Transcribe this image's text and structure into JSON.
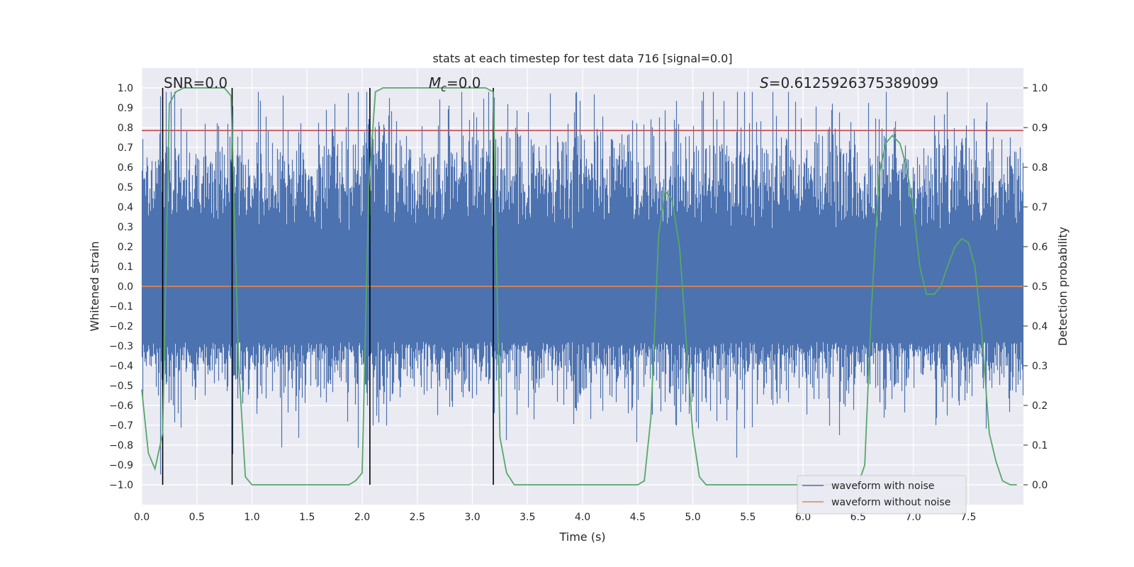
{
  "chart_data": {
    "type": "line",
    "title": "stats at each timestep for test data 716 [signal=0.0]",
    "xlabel": "Time (s)",
    "ylabel_left": "Whitened strain",
    "ylabel_right": "Detection probability",
    "xlim": [
      0.0,
      8.0
    ],
    "ylim_left": [
      -1.1,
      1.1
    ],
    "ylim_right": [
      -0.05,
      1.05
    ],
    "x_ticks": [
      0.0,
      0.5,
      1.0,
      1.5,
      2.0,
      2.5,
      3.0,
      3.5,
      4.0,
      4.5,
      5.0,
      5.5,
      6.0,
      6.5,
      7.0,
      7.5
    ],
    "x_tick_labels": [
      "0.0",
      "0.5",
      "1.0",
      "1.5",
      "2.0",
      "2.5",
      "3.0",
      "3.5",
      "4.0",
      "4.5",
      "5.0",
      "5.5",
      "6.0",
      "6.5",
      "7.0",
      "7.5"
    ],
    "y_left_ticks": [
      1.0,
      0.9,
      0.8,
      0.7,
      0.6,
      0.5,
      0.4,
      0.3,
      0.2,
      0.1,
      0.0,
      -0.1,
      -0.2,
      -0.3,
      -0.4,
      -0.5,
      -0.6,
      -0.7,
      -0.8,
      -0.9,
      -1.0
    ],
    "y_left_tick_labels": [
      "1.0",
      "0.9",
      "0.8",
      "0.7",
      "0.6",
      "0.5",
      "0.4",
      "0.3",
      "0.2",
      "0.1",
      "0.0",
      "−0.1",
      "−0.2",
      "−0.3",
      "−0.4",
      "−0.5",
      "−0.6",
      "−0.7",
      "−0.8",
      "−0.9",
      "−1.0"
    ],
    "y_right_ticks": [
      1.0,
      0.9,
      0.8,
      0.7,
      0.6,
      0.5,
      0.4,
      0.3,
      0.2,
      0.1,
      0.0
    ],
    "y_right_tick_labels": [
      "1.0",
      "0.9",
      "0.8",
      "0.7",
      "0.6",
      "0.5",
      "0.4",
      "0.3",
      "0.2",
      "0.1",
      "0.0"
    ],
    "grid": true,
    "legend": {
      "placement": "lower-right",
      "entries": [
        {
          "label": "waveform with noise",
          "color": "#4c72b0"
        },
        {
          "label": "waveform without noise",
          "color": "#dd8452"
        }
      ]
    },
    "series": [
      {
        "name": "waveform with noise",
        "axis": "left",
        "color": "#4c72b0",
        "description_values": {
          "envelope_typical": [
            -0.45,
            0.55
          ],
          "peak_max": 0.98,
          "peak_min": -1.0
        }
      },
      {
        "name": "waveform without noise",
        "axis": "left",
        "color": "#dd8452",
        "x": [
          0.0,
          8.0
        ],
        "y": [
          0.0,
          0.0
        ]
      },
      {
        "name": "detection probability",
        "axis": "right",
        "color": "#55a868",
        "x": [
          0.0,
          0.06,
          0.12,
          0.19,
          0.25,
          0.31,
          0.38,
          0.5,
          0.62,
          0.75,
          0.81,
          0.88,
          0.94,
          1.0,
          1.25,
          1.5,
          1.75,
          1.88,
          1.94,
          2.0,
          2.06,
          2.12,
          2.19,
          2.5,
          2.75,
          3.0,
          3.12,
          3.19,
          3.25,
          3.31,
          3.38,
          3.5,
          4.0,
          4.25,
          4.5,
          4.56,
          4.62,
          4.69,
          4.75,
          4.81,
          4.88,
          5.0,
          5.06,
          5.12,
          5.25,
          5.5,
          6.0,
          6.5,
          6.56,
          6.62,
          6.69,
          6.75,
          6.81,
          6.88,
          6.94,
          7.0,
          7.06,
          7.12,
          7.19,
          7.25,
          7.31,
          7.38,
          7.44,
          7.5,
          7.56,
          7.62,
          7.69,
          7.75,
          7.81,
          7.88,
          7.94
        ],
        "y": [
          0.24,
          0.08,
          0.04,
          0.13,
          0.96,
          0.99,
          1.0,
          1.0,
          1.0,
          1.0,
          0.98,
          0.3,
          0.02,
          0.0,
          0.0,
          0.0,
          0.0,
          0.0,
          0.01,
          0.03,
          0.75,
          0.99,
          1.0,
          1.0,
          1.0,
          1.0,
          1.0,
          0.99,
          0.12,
          0.03,
          0.0,
          0.0,
          0.0,
          0.0,
          0.0,
          0.01,
          0.17,
          0.63,
          0.74,
          0.72,
          0.6,
          0.13,
          0.02,
          0.0,
          0.0,
          0.0,
          0.0,
          0.0,
          0.05,
          0.44,
          0.78,
          0.86,
          0.88,
          0.86,
          0.8,
          0.7,
          0.55,
          0.48,
          0.48,
          0.5,
          0.55,
          0.6,
          0.62,
          0.61,
          0.55,
          0.39,
          0.13,
          0.06,
          0.01,
          0.0,
          0.0
        ]
      },
      {
        "name": "threshold",
        "axis": "left",
        "color": "#c44e52",
        "y": 0.785
      }
    ],
    "vertical_markers": [
      0.19,
      0.82,
      2.07,
      3.19
    ],
    "annotations": [
      {
        "text": "SNR=0.0",
        "x": 0.19,
        "y": 1.01
      },
      {
        "text": "M",
        "sub": "c",
        "tail": "=0.0",
        "x": 2.6,
        "y": 1.01
      },
      {
        "text": "S",
        "tail": "=0.6125926375389099",
        "x": 5.6,
        "y": 1.01
      }
    ]
  }
}
